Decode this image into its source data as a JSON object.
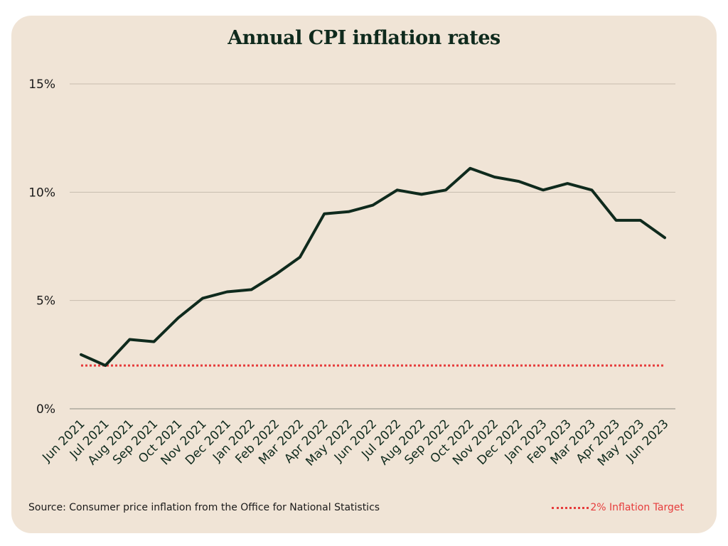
{
  "chart_data": {
    "type": "line",
    "title": "Annual CPI inflation rates",
    "xlabel": "",
    "ylabel": "",
    "ylim": [
      0,
      15
    ],
    "yticks": [
      0,
      5,
      10,
      15
    ],
    "ytick_labels": [
      "0%",
      "5%",
      "10%",
      "15%"
    ],
    "grid": true,
    "categories": [
      "Jun 2021",
      "Jul 2021",
      "Aug 2021",
      "Sep 2021",
      "Oct 2021",
      "Nov 2021",
      "Dec 2021",
      "Jan 2022",
      "Feb 2022",
      "Mar 2022",
      "Apr 2022",
      "May 2022",
      "Jun 2022",
      "Jul 2022",
      "Aug 2022",
      "Sep 2022",
      "Oct 2022",
      "Nov 2022",
      "Dec 2022",
      "Jan 2023",
      "Feb 2023",
      "Mar 2023",
      "Apr 2023",
      "May 2023",
      "Jun 2023"
    ],
    "series": [
      {
        "name": "Annual CPI inflation rate",
        "color": "#0f2a1d",
        "values": [
          2.5,
          2.0,
          3.2,
          3.1,
          4.2,
          5.1,
          5.4,
          5.5,
          6.2,
          7.0,
          9.0,
          9.1,
          9.4,
          10.1,
          9.9,
          10.1,
          11.1,
          10.7,
          10.5,
          10.1,
          10.4,
          10.1,
          8.7,
          8.7,
          7.9
        ]
      }
    ],
    "reference_line": {
      "name": "2% Inflation Target",
      "value": 2,
      "color": "#e63c3c"
    },
    "legend_position": "bottom-right"
  },
  "footer": {
    "source": "Source: Consumer price inflation from the Office for National Statistics",
    "legend_label": "2% Inflation Target"
  }
}
